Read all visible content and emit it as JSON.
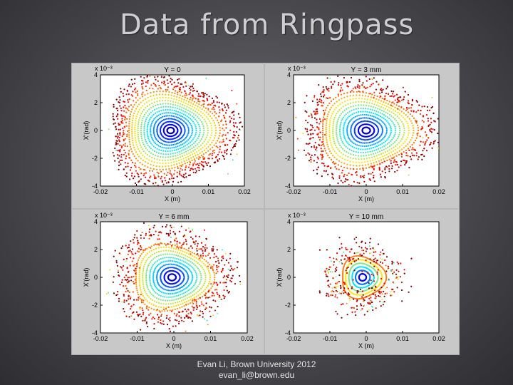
{
  "slide": {
    "title": "Data from Ringpass",
    "footer_line1": "Evan Li, Brown University 2012",
    "footer_line2": "evan_li@brown.edu"
  },
  "chart_data": [
    {
      "type": "scatter",
      "title": "Y = 0",
      "xlabel": "X (m)",
      "ylabel": "X'(rad)",
      "exponent_label": "x 10⁻³",
      "xlim": [
        -0.02,
        0.02
      ],
      "ylim": [
        -4,
        4
      ],
      "xticks": [
        "-0.02",
        "-0.01",
        "0",
        "0.01",
        "0.02"
      ],
      "yticks": [
        "4",
        "2",
        "0",
        "-2",
        "-4"
      ],
      "rings": {
        "count": 18,
        "max_half_width": 0.0175,
        "max_half_height": 3.8,
        "x_shift": -0.0005,
        "outer_scatter": 0.35,
        "stray_points": 20
      }
    },
    {
      "type": "scatter",
      "title": "Y = 3 mm",
      "xlabel": "X (m)",
      "ylabel": "X'(rad)",
      "exponent_label": "x 10⁻³",
      "xlim": [
        -0.02,
        0.02
      ],
      "ylim": [
        -4,
        4
      ],
      "xticks": [
        "-0.02",
        "-0.01",
        "0",
        "0.01",
        "0.02"
      ],
      "yticks": [
        "4",
        "2",
        "0",
        "-2",
        "-4"
      ],
      "rings": {
        "count": 16,
        "max_half_width": 0.0175,
        "max_half_height": 3.6,
        "x_shift": 0.0,
        "outer_scatter": 0.9,
        "stray_points": 30
      }
    },
    {
      "type": "scatter",
      "title": "Y = 6 mm",
      "xlabel": "X (m)",
      "ylabel": "X'(rad)",
      "exponent_label": "x 10⁻³",
      "xlim": [
        -0.02,
        0.02
      ],
      "ylim": [
        -4,
        4
      ],
      "xticks": [
        "-0.02",
        "-0.01",
        "0",
        "0.01",
        "0.02"
      ],
      "yticks": [
        "4",
        "2",
        "0",
        "-2",
        "-4"
      ],
      "rings": {
        "count": 14,
        "max_half_width": 0.015,
        "max_half_height": 3.3,
        "x_shift": -0.0005,
        "outer_scatter": 1.4,
        "stray_points": 55
      }
    },
    {
      "type": "scatter",
      "title": "Y = 10 mm",
      "xlabel": "X (m)",
      "ylabel": "X'(rad)",
      "exponent_label": "x 10⁻³",
      "xlim": [
        -0.02,
        0.02
      ],
      "ylim": [
        -4,
        4
      ],
      "xticks": [
        "-0.02",
        "-0.01",
        "0",
        "0.01",
        "0.02"
      ],
      "yticks": [
        "4",
        "2",
        "0",
        "-2",
        "-4"
      ],
      "rings": {
        "count": 8,
        "max_half_width": 0.008,
        "max_half_height": 2.0,
        "x_shift": -0.001,
        "outer_scatter": 2.5,
        "stray_points": 90
      }
    }
  ]
}
